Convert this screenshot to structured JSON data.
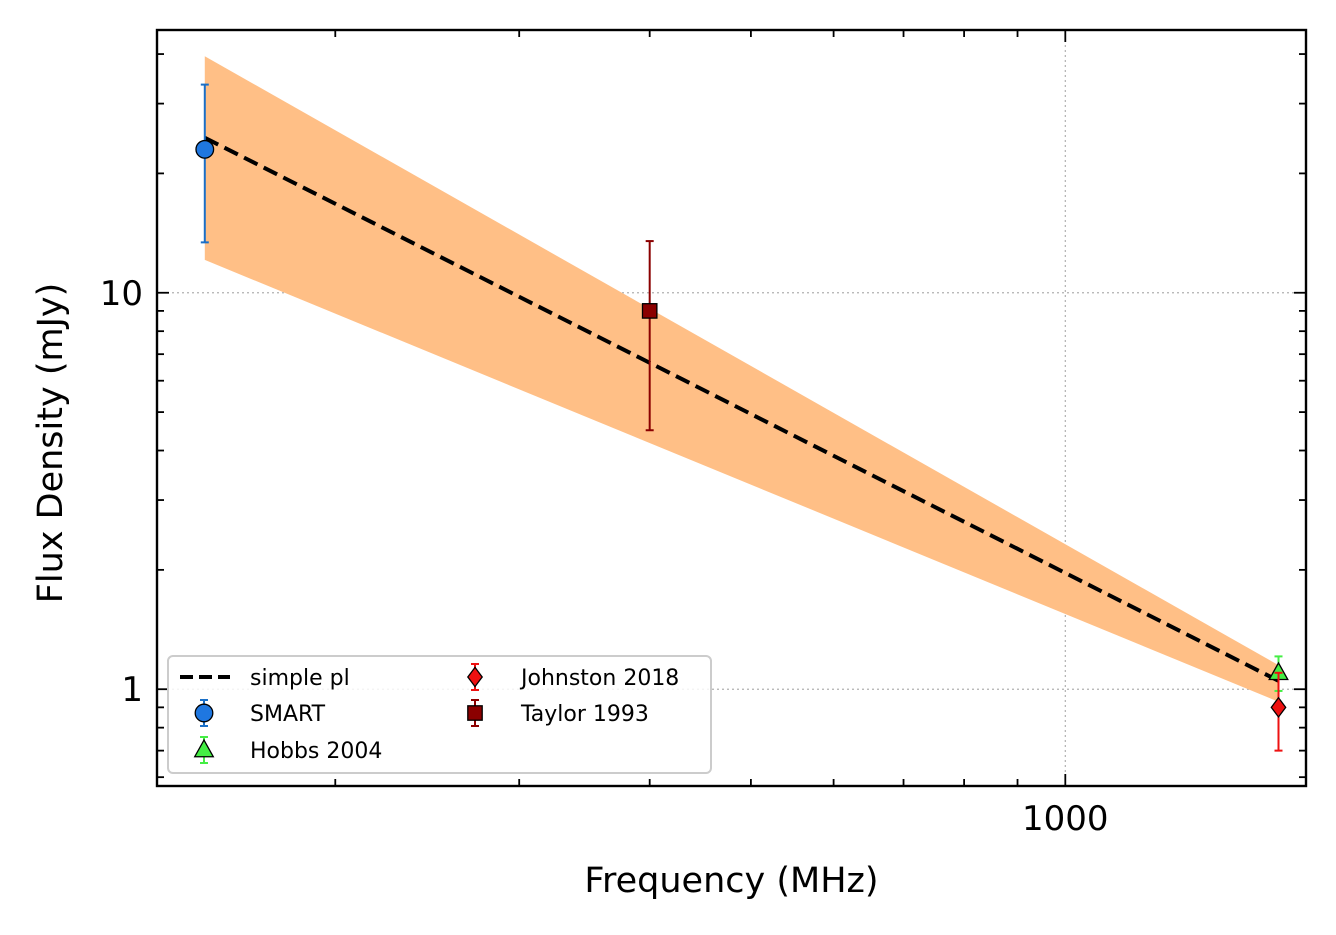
{
  "chart_data": {
    "type": "scatter",
    "title": "",
    "xlabel": "Frequency (MHz)",
    "ylabel": "Flux Density (mJy)",
    "xscale": "log",
    "yscale": "log",
    "xlim": [
      135,
      1700
    ],
    "ylim": [
      0.57,
      46
    ],
    "grid": "major, dotted",
    "x_tick_labels": [
      {
        "value": 1000,
        "label": "1000"
      }
    ],
    "y_tick_labels": [
      {
        "value": 1,
        "label": "1"
      },
      {
        "value": 10,
        "label": "10"
      }
    ],
    "legend_position": "lower-left",
    "fit": {
      "name": "simple pl",
      "color": "#000000",
      "x": [
        150,
        1600
      ],
      "y": [
        24.6,
        1.05
      ]
    },
    "uncertainty_band": {
      "color": "#ffbf86",
      "x": [
        150,
        1600
      ],
      "y_upper": [
        39.5,
        1.15
      ],
      "y_lower": [
        12.1,
        0.93
      ]
    },
    "series": [
      {
        "name": "SMART",
        "marker": "circle",
        "color": "#1f77e0",
        "errcolor": "#1a6fc7",
        "points": [
          {
            "x": 150,
            "y": 23,
            "ylo": 13.4,
            "yhi": 33.5
          }
        ]
      },
      {
        "name": "Hobbs 2004",
        "marker": "triangle",
        "color": "#44ee44",
        "errcolor": "#44ee44",
        "points": [
          {
            "x": 1600,
            "y": 1.1,
            "ylo": 0.99,
            "yhi": 1.21
          }
        ]
      },
      {
        "name": "Johnston 2018",
        "marker": "diamond",
        "color": "#ee1111",
        "errcolor": "#ee1111",
        "points": [
          {
            "x": 1600,
            "y": 0.9,
            "ylo": 0.7,
            "yhi": 1.1
          }
        ]
      },
      {
        "name": "Taylor 1993",
        "marker": "square",
        "color": "#8b0000",
        "errcolor": "#8b0000",
        "points": [
          {
            "x": 400,
            "y": 9,
            "ylo": 4.5,
            "yhi": 13.5
          }
        ]
      }
    ]
  }
}
